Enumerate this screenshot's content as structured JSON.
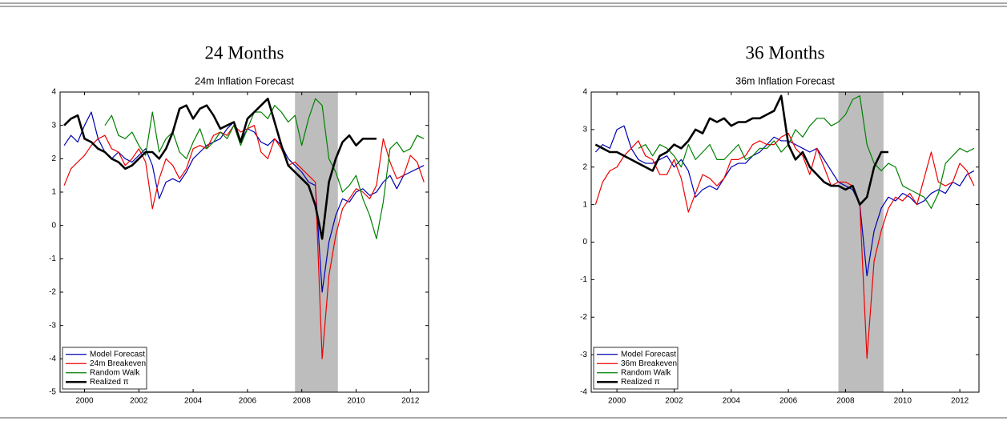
{
  "chart_data": [
    {
      "type": "line",
      "heading": "24 Months",
      "title": "24m Inflation Forecast",
      "x": [
        1999.25,
        1999.5,
        1999.75,
        2000,
        2000.25,
        2000.5,
        2000.75,
        2001,
        2001.25,
        2001.5,
        2001.75,
        2002,
        2002.25,
        2002.5,
        2002.75,
        2003,
        2003.25,
        2003.5,
        2003.75,
        2004,
        2004.25,
        2004.5,
        2004.75,
        2005,
        2005.25,
        2005.5,
        2005.75,
        2006,
        2006.25,
        2006.5,
        2006.75,
        2007,
        2007.25,
        2007.5,
        2007.75,
        2008,
        2008.25,
        2008.5,
        2008.75,
        2009,
        2009.25,
        2009.5,
        2009.75,
        2010,
        2010.25,
        2010.5,
        2010.75,
        2011,
        2011.25,
        2011.5,
        2011.75,
        2012,
        2012.25,
        2012.5
      ],
      "series": [
        {
          "name": "Model Forecast",
          "color": "#0000b0",
          "width": 1.2,
          "values": [
            2.4,
            2.7,
            2.5,
            3.0,
            3.4,
            2.6,
            2.2,
            2.0,
            2.2,
            2.0,
            1.9,
            2.1,
            2.3,
            1.8,
            0.8,
            1.3,
            1.4,
            1.3,
            1.6,
            2.0,
            2.2,
            2.4,
            2.5,
            2.6,
            2.9,
            3.1,
            2.5,
            2.9,
            2.8,
            2.5,
            2.4,
            2.6,
            2.4,
            2.0,
            1.8,
            1.6,
            1.3,
            1.2,
            -2.0,
            -0.5,
            0.3,
            0.8,
            0.7,
            1.0,
            1.1,
            0.9,
            1.0,
            1.3,
            1.5,
            1.1,
            1.5,
            1.6,
            1.7,
            1.8
          ]
        },
        {
          "name": "24m Breakeven",
          "color": "#ee0000",
          "width": 1.2,
          "values": [
            1.2,
            1.7,
            1.9,
            2.1,
            2.4,
            2.6,
            2.7,
            2.3,
            2.2,
            1.8,
            2.0,
            2.3,
            1.9,
            0.5,
            1.4,
            2.0,
            1.8,
            1.4,
            1.7,
            2.3,
            2.4,
            2.3,
            2.7,
            2.8,
            2.7,
            3.0,
            2.8,
            2.9,
            3.0,
            2.2,
            2.0,
            2.6,
            2.3,
            1.8,
            1.9,
            1.7,
            1.5,
            1.3,
            -4.0,
            -1.5,
            -0.3,
            0.5,
            0.8,
            1.1,
            1.0,
            0.8,
            1.2,
            2.6,
            1.9,
            1.4,
            1.5,
            2.1,
            1.9,
            1.3
          ]
        },
        {
          "name": "Random Walk",
          "color": "#008000",
          "width": 1.2,
          "values": [
            null,
            null,
            null,
            null,
            null,
            null,
            3.0,
            3.3,
            2.7,
            2.6,
            2.8,
            2.4,
            2.1,
            3.4,
            2.2,
            2.6,
            2.8,
            2.2,
            2.0,
            2.5,
            2.9,
            2.3,
            2.5,
            2.8,
            2.6,
            3.0,
            2.4,
            2.9,
            3.4,
            3.4,
            3.2,
            3.6,
            3.4,
            3.1,
            3.3,
            2.4,
            3.2,
            3.8,
            3.6,
            2.0,
            1.6,
            1.0,
            1.2,
            1.5,
            0.8,
            0.3,
            -0.4,
            0.7,
            2.3,
            2.5,
            2.2,
            2.3,
            2.7,
            2.6
          ]
        },
        {
          "name": "Realized π",
          "color": "#000000",
          "width": 2.6,
          "values": [
            3.0,
            3.2,
            3.3,
            2.6,
            2.5,
            2.3,
            2.2,
            2.0,
            1.9,
            1.7,
            1.8,
            2.0,
            2.2,
            2.2,
            2.0,
            2.3,
            2.8,
            3.5,
            3.6,
            3.2,
            3.5,
            3.6,
            3.3,
            2.9,
            3.0,
            3.1,
            2.5,
            3.2,
            3.4,
            3.6,
            3.8,
            3.1,
            2.4,
            1.8,
            1.6,
            1.4,
            1.2,
            0.6,
            -0.4,
            1.3,
            2.0,
            2.5,
            2.7,
            2.4,
            2.6,
            2.6,
            2.6,
            null,
            null,
            null,
            null,
            null,
            null,
            null
          ]
        }
      ],
      "shaded_xrange": [
        2007.75,
        2009.33
      ],
      "shade_color": "#bdbdbd",
      "xlim": [
        1999.1,
        2012.67
      ],
      "xticks": [
        2000,
        2002,
        2004,
        2006,
        2008,
        2010,
        2012
      ],
      "ylim": [
        -5,
        4
      ],
      "yticks": [
        -5,
        -4,
        -3,
        -2,
        -1,
        0,
        1,
        2,
        3,
        4
      ],
      "legend": "lower left"
    },
    {
      "type": "line",
      "heading": "36 Months",
      "title": "36m Inflation Forecast",
      "x": [
        1999.25,
        1999.5,
        1999.75,
        2000,
        2000.25,
        2000.5,
        2000.75,
        2001,
        2001.25,
        2001.5,
        2001.75,
        2002,
        2002.25,
        2002.5,
        2002.75,
        2003,
        2003.25,
        2003.5,
        2003.75,
        2004,
        2004.25,
        2004.5,
        2004.75,
        2005,
        2005.25,
        2005.5,
        2005.75,
        2006,
        2006.25,
        2006.5,
        2006.75,
        2007,
        2007.25,
        2007.5,
        2007.75,
        2008,
        2008.25,
        2008.5,
        2008.75,
        2009,
        2009.25,
        2009.5,
        2009.75,
        2010,
        2010.25,
        2010.5,
        2010.75,
        2011,
        2011.25,
        2011.5,
        2011.75,
        2012,
        2012.25,
        2012.5
      ],
      "series": [
        {
          "name": "Model Forecast",
          "color": "#0000b0",
          "width": 1.2,
          "values": [
            2.4,
            2.6,
            2.5,
            3.0,
            3.1,
            2.5,
            2.2,
            2.1,
            2.1,
            2.2,
            2.3,
            2.0,
            2.2,
            1.9,
            1.2,
            1.4,
            1.5,
            1.4,
            1.7,
            2.0,
            2.1,
            2.1,
            2.3,
            2.4,
            2.6,
            2.8,
            2.7,
            2.7,
            2.6,
            2.5,
            2.4,
            2.5,
            2.2,
            1.9,
            1.6,
            1.5,
            1.4,
            1.0,
            -0.9,
            0.3,
            0.9,
            1.2,
            1.1,
            1.3,
            1.2,
            1.0,
            1.1,
            1.3,
            1.4,
            1.3,
            1.6,
            1.5,
            1.8,
            1.9
          ]
        },
        {
          "name": "36m Breakeven",
          "color": "#ee0000",
          "width": 1.2,
          "values": [
            1.0,
            1.6,
            1.9,
            2.0,
            2.3,
            2.5,
            2.7,
            2.3,
            2.2,
            1.8,
            1.8,
            2.2,
            1.7,
            0.8,
            1.3,
            1.8,
            1.7,
            1.5,
            1.7,
            2.2,
            2.2,
            2.3,
            2.6,
            2.7,
            2.6,
            2.6,
            2.8,
            2.9,
            2.5,
            2.3,
            1.8,
            2.5,
            2.0,
            1.5,
            1.6,
            1.6,
            1.5,
            1.0,
            -3.1,
            -0.5,
            0.3,
            0.9,
            1.2,
            1.1,
            1.3,
            1.0,
            1.7,
            2.4,
            1.6,
            1.5,
            1.6,
            2.1,
            1.9,
            1.5
          ]
        },
        {
          "name": "Random Walk",
          "color": "#008000",
          "width": 1.2,
          "values": [
            null,
            null,
            null,
            null,
            null,
            null,
            2.5,
            2.6,
            2.3,
            2.6,
            2.5,
            2.3,
            2.0,
            2.6,
            2.2,
            2.4,
            2.6,
            2.2,
            2.2,
            2.4,
            2.6,
            2.2,
            2.3,
            2.5,
            2.5,
            2.7,
            2.4,
            2.6,
            3.0,
            2.8,
            3.1,
            3.3,
            3.3,
            3.1,
            3.2,
            3.4,
            3.8,
            3.9,
            2.6,
            2.1,
            1.9,
            2.1,
            2.0,
            1.5,
            1.4,
            1.3,
            1.2,
            0.9,
            1.3,
            2.1,
            2.3,
            2.5,
            2.4,
            2.5
          ]
        },
        {
          "name": "Realized π",
          "color": "#000000",
          "width": 2.6,
          "values": [
            2.6,
            2.5,
            2.4,
            2.4,
            2.3,
            2.2,
            2.1,
            2.0,
            1.9,
            2.3,
            2.4,
            2.6,
            2.5,
            2.7,
            3.0,
            2.9,
            3.3,
            3.2,
            3.3,
            3.1,
            3.2,
            3.2,
            3.3,
            3.3,
            3.4,
            3.5,
            3.9,
            2.6,
            2.2,
            2.4,
            2.0,
            1.8,
            1.6,
            1.5,
            1.5,
            1.4,
            1.5,
            1.0,
            1.2,
            2.0,
            2.4,
            2.4,
            null,
            null,
            null,
            null,
            null,
            null,
            null,
            null,
            null,
            null,
            null,
            null
          ]
        }
      ],
      "shaded_xrange": [
        2007.75,
        2009.33
      ],
      "shade_color": "#bdbdbd",
      "xlim": [
        1999.1,
        2012.67
      ],
      "xticks": [
        2000,
        2002,
        2004,
        2006,
        2008,
        2010,
        2012
      ],
      "ylim": [
        -4,
        4
      ],
      "yticks": [
        -4,
        -3,
        -2,
        -1,
        0,
        1,
        2,
        3,
        4
      ],
      "legend": "lower left"
    }
  ]
}
